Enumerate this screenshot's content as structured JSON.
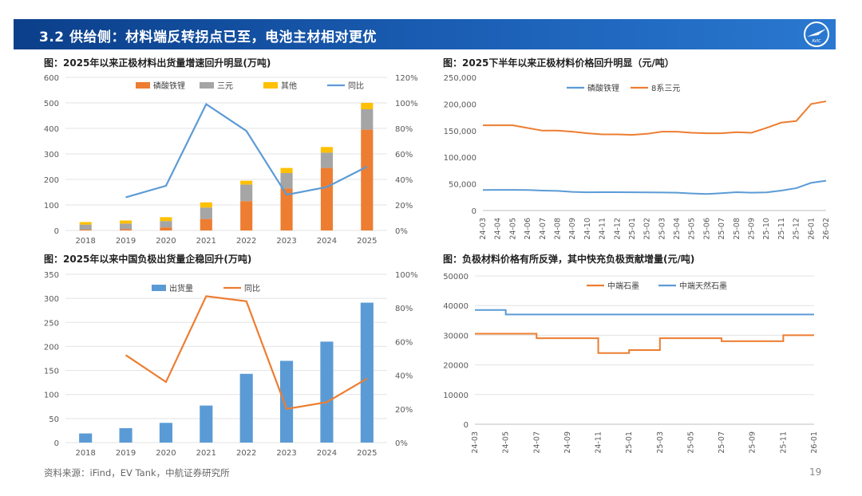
{
  "header": {
    "title": "3.2 供给侧：材料端反转拐点已至，电池主材相对更优",
    "logo_text": "AVIC"
  },
  "footer": {
    "source": "资料来源：iFind，EV Tank，中航证券研究所",
    "page": "19"
  },
  "colors": {
    "orange": "#ED7D31",
    "gray": "#A5A5A5",
    "yellow": "#FFC000",
    "blue": "#5B9BD5",
    "header": "#1b5fb5"
  },
  "chart_data": [
    {
      "id": "c1",
      "type": "bar",
      "title": "图：2025年以来正极材料出货量增速回升明显(万吨)",
      "categories": [
        "2018",
        "2019",
        "2020",
        "2021",
        "2022",
        "2023",
        "2024",
        "2025"
      ],
      "series": [
        {
          "name": "磷酸铁锂",
          "type": "bar",
          "stack": true,
          "color": "#ED7D31",
          "values": [
            3,
            5,
            12,
            45,
            115,
            165,
            245,
            395
          ]
        },
        {
          "name": "三元",
          "type": "bar",
          "stack": true,
          "color": "#A5A5A5",
          "values": [
            20,
            22,
            25,
            45,
            65,
            60,
            60,
            80
          ]
        },
        {
          "name": "其他",
          "type": "bar",
          "stack": true,
          "color": "#FFC000",
          "values": [
            10,
            12,
            15,
            20,
            15,
            20,
            22,
            25
          ]
        },
        {
          "name": "同比",
          "type": "line",
          "axis": "right",
          "color": "#5B9BD5",
          "values": [
            null,
            26,
            35,
            99,
            78,
            28,
            34,
            50
          ]
        }
      ],
      "ylim": [
        0,
        600
      ],
      "yticks": [
        "0",
        "100",
        "200",
        "300",
        "400",
        "500",
        "600"
      ],
      "y2lim": [
        0,
        120
      ],
      "y2ticks": [
        "0%",
        "20%",
        "40%",
        "60%",
        "80%",
        "100%",
        "120%"
      ]
    },
    {
      "id": "c2",
      "type": "line",
      "title": "图：2025下半年以来正极材料价格回升明显（元/吨）",
      "x": [
        "24-03",
        "24-04",
        "24-05",
        "24-06",
        "24-07",
        "24-08",
        "24-09",
        "24-10",
        "24-11",
        "24-12",
        "25-01",
        "25-02",
        "25-03",
        "25-04",
        "25-05",
        "25-06",
        "25-07",
        "25-08",
        "25-09",
        "25-10",
        "25-11",
        "25-12",
        "26-01",
        "26-02"
      ],
      "series": [
        {
          "name": "磷酸铁锂",
          "color": "#5B9BD5",
          "values": [
            38500,
            38800,
            38800,
            38500,
            37500,
            36800,
            35000,
            34200,
            34500,
            34500,
            34200,
            34000,
            33800,
            33500,
            32000,
            31000,
            32500,
            34500,
            33500,
            34000,
            37500,
            42000,
            52000,
            56000
          ]
        },
        {
          "name": "8系三元",
          "color": "#ED7D31",
          "values": [
            160000,
            160000,
            160000,
            155000,
            150000,
            150000,
            148000,
            145000,
            143000,
            143000,
            142000,
            144000,
            148000,
            148000,
            146000,
            145000,
            145000,
            147000,
            146000,
            155000,
            165000,
            168000,
            200000,
            205000
          ]
        }
      ],
      "ylim": [
        0,
        250000
      ],
      "yticks": [
        "0",
        "50,000",
        "100,000",
        "150,000",
        "200,000",
        "250,000"
      ]
    },
    {
      "id": "c3",
      "type": "bar",
      "title": "图：2025年以来中国负极出货量企稳回升(万吨)",
      "categories": [
        "2018",
        "2019",
        "2020",
        "2021",
        "2022",
        "2023",
        "2024",
        "2025"
      ],
      "series": [
        {
          "name": "出货量",
          "type": "bar",
          "color": "#5B9BD5",
          "values": [
            19,
            30,
            41,
            77,
            143,
            170,
            210,
            291
          ]
        },
        {
          "name": "同比",
          "type": "line",
          "axis": "right",
          "color": "#ED7D31",
          "values": [
            null,
            52,
            36,
            87,
            84,
            20,
            24,
            38
          ]
        }
      ],
      "ylim": [
        0,
        350
      ],
      "yticks": [
        "0",
        "50",
        "100",
        "150",
        "200",
        "250",
        "300",
        "350"
      ],
      "y2lim": [
        0,
        100
      ],
      "y2ticks": [
        "0%",
        "20%",
        "40%",
        "60%",
        "80%",
        "100%"
      ]
    },
    {
      "id": "c4",
      "type": "line",
      "title": "图：负极材料价格有所反弹，其中快充负极贡献增量(元/吨)",
      "x": [
        "24-03",
        "24-05",
        "24-07",
        "24-09",
        "24-11",
        "25-01",
        "25-03",
        "25-05",
        "25-07",
        "25-09",
        "25-11",
        "26-01"
      ],
      "series": [
        {
          "name": "中端石墨",
          "color": "#ED7D31",
          "values": [
            30500,
            30500,
            29000,
            29000,
            24000,
            25000,
            29000,
            29000,
            28000,
            28000,
            30000,
            30000
          ]
        },
        {
          "name": "中端天然石墨",
          "color": "#5B9BD5",
          "values": [
            38500,
            37000,
            37000,
            37000,
            37000,
            37000,
            37000,
            37000,
            37000,
            37000,
            37000,
            37000
          ]
        }
      ],
      "ylim": [
        0,
        50000
      ],
      "yticks": [
        "0",
        "10000",
        "20000",
        "30000",
        "40000",
        "50000"
      ]
    }
  ]
}
